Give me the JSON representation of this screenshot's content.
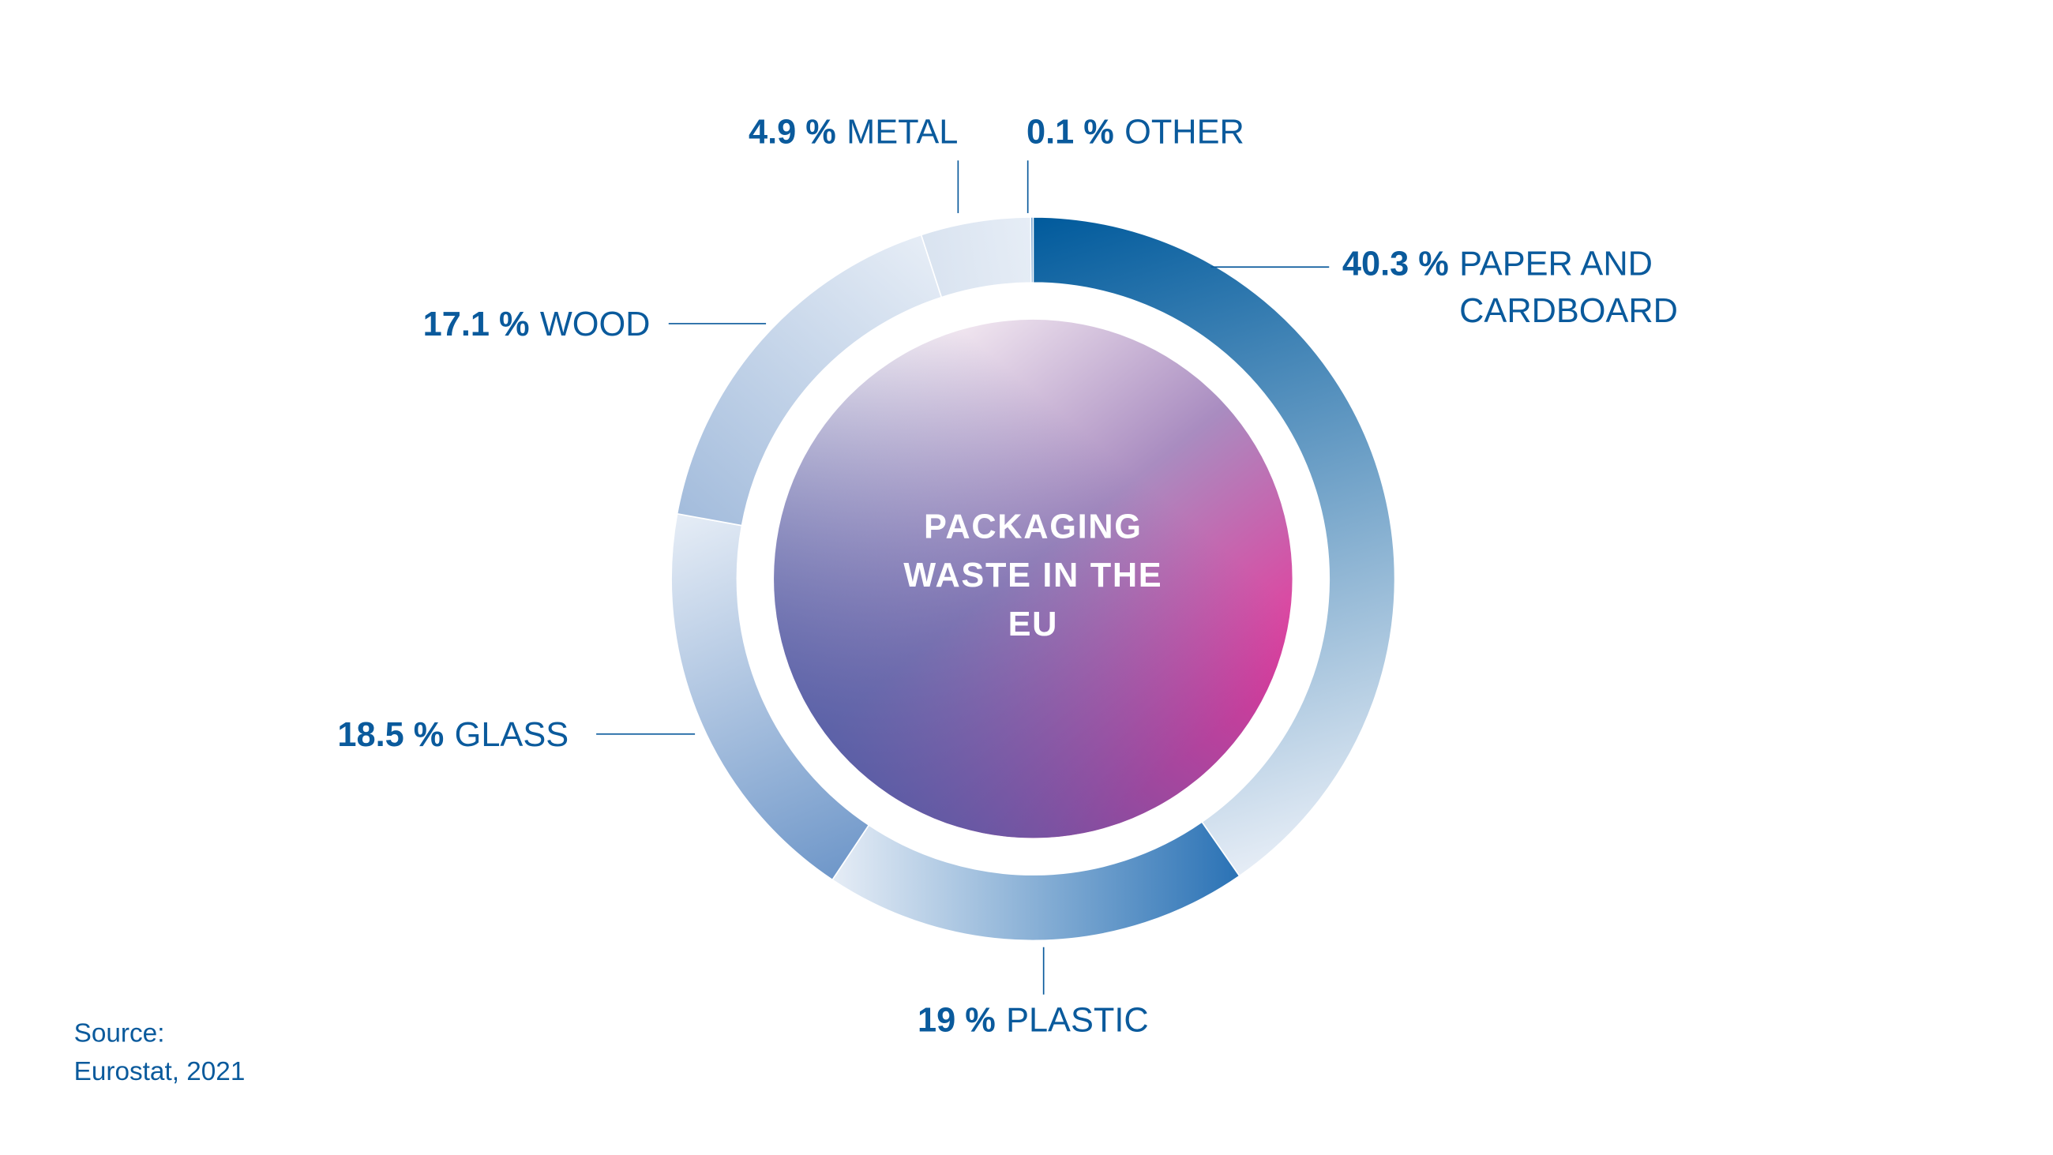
{
  "chart_data": {
    "type": "donut",
    "title": "PACKAGING WASTE IN THE EU",
    "categories": [
      "PAPER AND CARDBOARD",
      "PLASTIC",
      "GLASS",
      "WOOD",
      "METAL",
      "OTHER"
    ],
    "values": [
      40.3,
      19,
      18.5,
      17.1,
      4.9,
      0.1
    ],
    "value_labels": [
      "40.3 %",
      "19 %",
      "18.5 %",
      "17.1 %",
      "4.9 %",
      "0.1 %"
    ],
    "colors": [
      "#005a9c",
      "#2a72b5",
      "#6f97c9",
      "#a3bcdc",
      "#d9e3f0",
      "#3f7fbf"
    ],
    "source_label": "Source:",
    "source": "Eurostat, 2021"
  }
}
